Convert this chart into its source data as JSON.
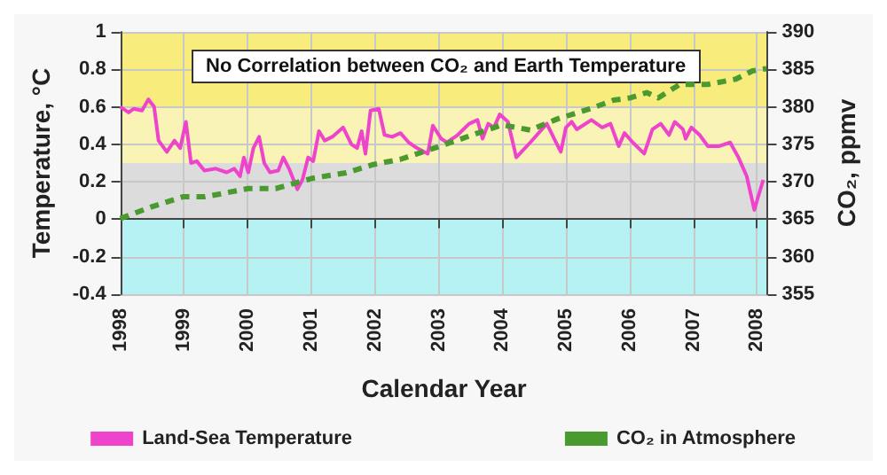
{
  "chart_data": {
    "type": "line",
    "title": "No Correlation between CO₂ and Earth Temperature",
    "xlabel": "Calendar Year",
    "ylabel": "Temperature, °C",
    "y2label": "CO₂, ppmv",
    "xlim": [
      1998,
      2008.17
    ],
    "xticks": [
      1998,
      1999,
      2000,
      2001,
      2002,
      2003,
      2004,
      2005,
      2006,
      2007,
      2008
    ],
    "ylim": [
      -0.4,
      1
    ],
    "yticks": [
      -0.4,
      -0.2,
      0,
      0.2,
      0.4,
      0.6,
      0.8,
      1
    ],
    "y2lim": [
      355,
      390
    ],
    "y2ticks": [
      355,
      360,
      365,
      370,
      375,
      380,
      385,
      390
    ],
    "grid": true,
    "legend": "bottom",
    "marker": "none",
    "bands": [
      {
        "axis": "y",
        "from": 0.6,
        "to": 1,
        "color": "#f7ec7c"
      },
      {
        "axis": "y",
        "from": 0.3,
        "to": 0.6,
        "color": "#f9f4b6"
      },
      {
        "axis": "y",
        "from": 0,
        "to": 0.3,
        "color": "#dcdcdc"
      },
      {
        "axis": "y",
        "from": -0.4,
        "to": 0,
        "color": "#b6f1f3"
      }
    ],
    "series": [
      {
        "name": "Land-Sea Temperature",
        "color": "#ee44cc",
        "line_style": "solid",
        "x": [
          1998.0,
          1998.13,
          1998.21,
          1998.34,
          1998.44,
          1998.53,
          1998.6,
          1998.73,
          1998.85,
          1998.94,
          1999.03,
          1999.11,
          1999.2,
          1999.32,
          1999.5,
          1999.67,
          1999.79,
          1999.88,
          1999.94,
          2000.01,
          2000.09,
          2000.18,
          2000.26,
          2000.35,
          2000.48,
          2000.56,
          2000.65,
          2000.78,
          2000.86,
          2000.95,
          2001.03,
          2001.12,
          2001.21,
          2001.33,
          2001.5,
          2001.63,
          2001.72,
          2001.79,
          2001.85,
          2001.93,
          2002.06,
          2002.15,
          2002.27,
          2002.4,
          2002.53,
          2002.66,
          2002.83,
          2002.91,
          2003.04,
          2003.13,
          2003.3,
          2003.48,
          2003.61,
          2003.69,
          2003.78,
          2003.87,
          2003.96,
          2004.09,
          2004.22,
          2004.44,
          2004.7,
          2004.83,
          2004.92,
          2005.0,
          2005.09,
          2005.17,
          2005.4,
          2005.57,
          2005.7,
          2005.83,
          2005.92,
          2006.05,
          2006.23,
          2006.36,
          2006.49,
          2006.62,
          2006.71,
          2006.84,
          2006.88,
          2006.97,
          2007.1,
          2007.23,
          2007.41,
          2007.58,
          2007.71,
          2007.84,
          2007.96,
          2008.02,
          2008.1
        ],
        "values": [
          0.6,
          0.57,
          0.59,
          0.58,
          0.64,
          0.6,
          0.42,
          0.36,
          0.42,
          0.38,
          0.52,
          0.3,
          0.31,
          0.26,
          0.27,
          0.25,
          0.27,
          0.23,
          0.33,
          0.25,
          0.38,
          0.44,
          0.3,
          0.25,
          0.26,
          0.33,
          0.27,
          0.16,
          0.21,
          0.33,
          0.31,
          0.47,
          0.42,
          0.44,
          0.49,
          0.4,
          0.38,
          0.47,
          0.35,
          0.58,
          0.59,
          0.45,
          0.44,
          0.46,
          0.41,
          0.38,
          0.35,
          0.5,
          0.43,
          0.41,
          0.45,
          0.51,
          0.53,
          0.43,
          0.51,
          0.49,
          0.56,
          0.52,
          0.33,
          0.41,
          0.51,
          0.42,
          0.36,
          0.49,
          0.52,
          0.48,
          0.53,
          0.49,
          0.51,
          0.39,
          0.46,
          0.41,
          0.35,
          0.48,
          0.51,
          0.45,
          0.52,
          0.48,
          0.43,
          0.49,
          0.45,
          0.39,
          0.39,
          0.41,
          0.33,
          0.23,
          0.05,
          0.12,
          0.21
        ]
      },
      {
        "name": "CO₂ in Atmosphere",
        "color": "#4a9a30",
        "line_style": "dashed",
        "axis": "y2",
        "x": [
          1998.0,
          1998.47,
          1998.98,
          1999.32,
          1999.58,
          2000.01,
          2000.44,
          2001.03,
          2001.55,
          2001.97,
          2002.4,
          2003.04,
          2003.65,
          2004.0,
          2004.44,
          2004.87,
          2005.4,
          2005.75,
          2006.01,
          2006.27,
          2006.45,
          2006.79,
          2007.23,
          2007.67,
          2007.93,
          2008.15
        ],
        "values": [
          365.1,
          366.6,
          368.0,
          368.0,
          368.4,
          369.1,
          369.1,
          370.5,
          371.2,
          372.3,
          373.0,
          374.8,
          376.6,
          377.6,
          376.9,
          378.4,
          379.8,
          380.9,
          381.2,
          381.9,
          381.2,
          383.0,
          383.0,
          383.7,
          384.8,
          385.1
        ]
      }
    ]
  }
}
